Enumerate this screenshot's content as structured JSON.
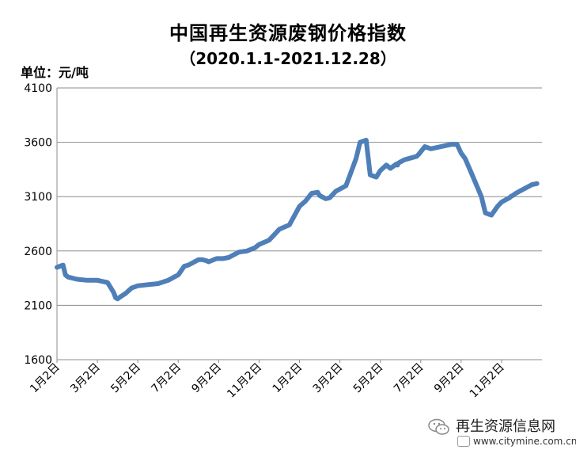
{
  "chart_data": {
    "type": "line",
    "title": "中国再生资源废钢价格指数",
    "subtitle": "（2020.1.1-2021.12.28）",
    "unit_label": "单位：元/吨",
    "xlabel": "",
    "ylabel": "",
    "ylim": [
      1600,
      4100
    ],
    "y_ticks": [
      "4100",
      "3600",
      "3100",
      "2600",
      "2100",
      "1600"
    ],
    "x_tick_labels": [
      "1月2日",
      "3月2日",
      "5月2日",
      "7月2日",
      "9月2日",
      "11月2日",
      "1月2日",
      "3月2日",
      "5月2日",
      "7月2日",
      "9月2日",
      "11月2日"
    ],
    "x_range": [
      0,
      24
    ],
    "grid": "horizontal",
    "legend": "none",
    "line_color": "#4f7fb8",
    "series": [
      {
        "x": [
          0,
          0.3,
          0.42,
          0.55,
          1.0,
          1.5,
          2.0,
          2.5,
          2.8,
          2.9,
          3.0,
          3.15,
          3.4,
          3.7,
          4.0,
          4.5,
          5.0,
          5.5,
          5.8,
          6.0,
          6.3,
          6.5,
          7.0,
          7.2,
          7.4,
          7.5,
          7.9,
          8.2,
          8.5,
          9.0,
          9.4,
          9.8,
          10.0,
          10.5,
          11.0,
          11.5,
          12.0,
          12.3,
          12.6,
          12.9,
          13.0,
          13.3,
          13.5,
          13.8,
          14.0,
          14.3,
          14.5,
          14.8,
          15.0,
          15.3,
          15.5,
          15.8,
          16.0,
          16.3,
          16.5,
          16.8,
          16.85,
          16.9,
          17.0,
          17.2,
          17.4,
          17.8,
          17.9,
          18.2,
          18.5,
          19.0,
          19.5,
          19.8,
          20.0,
          20.2,
          20.5,
          21.0,
          21.2,
          21.5,
          21.8,
          22.0,
          22.2,
          22.4,
          22.45,
          22.55,
          22.7,
          22.9,
          23.2,
          23.5,
          23.75
        ],
        "y": [
          2450,
          2470,
          2380,
          2360,
          2340,
          2330,
          2330,
          2310,
          2220,
          2170,
          2160,
          2180,
          2210,
          2260,
          2280,
          2290,
          2300,
          2330,
          2360,
          2380,
          2460,
          2470,
          2520,
          2520,
          2510,
          2500,
          2530,
          2530,
          2540,
          2590,
          2600,
          2630,
          2660,
          2700,
          2800,
          2840,
          3010,
          3060,
          3130,
          3140,
          3110,
          3080,
          3090,
          3150,
          3170,
          3200,
          3300,
          3450,
          3600,
          3620,
          3300,
          3280,
          3340,
          3390,
          3360,
          3400,
          3390,
          3410,
          3420,
          3440,
          3450,
          3470,
          3490,
          3560,
          3540,
          3560,
          3580,
          3580,
          3500,
          3450,
          3320,
          3100,
          2950,
          2930,
          3010,
          3050,
          3070,
          3090,
          3100,
          3110,
          3130,
          3150,
          3180,
          3210,
          3220
        ]
      }
    ]
  },
  "watermark": {
    "name": "再生资源信息网",
    "url": "www.citymine.com.cn",
    "logo_icon": "wechat-icon"
  }
}
